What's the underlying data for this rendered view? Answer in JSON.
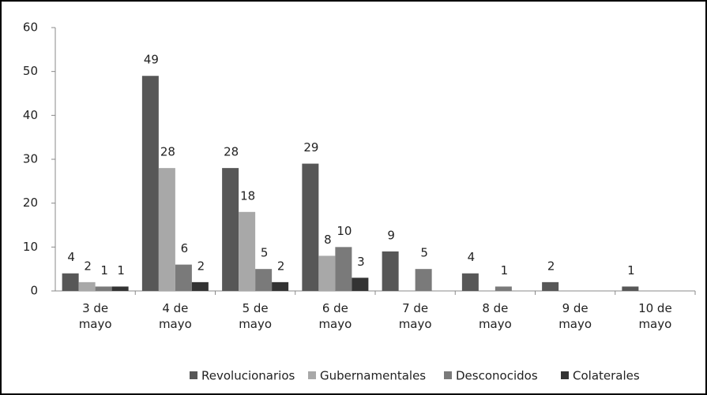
{
  "chart_data": {
    "type": "bar",
    "categories": [
      "3 de mayo",
      "4 de mayo",
      "5 de mayo",
      "6 de mayo",
      "7 de mayo",
      "8 de mayo",
      "9 de mayo",
      "10 de mayo"
    ],
    "series": [
      {
        "name": "Revolucionarios",
        "color": "#575757",
        "values": [
          4,
          49,
          28,
          29,
          9,
          4,
          2,
          1
        ]
      },
      {
        "name": "Gubernamentales",
        "color": "#a8a8a8",
        "values": [
          2,
          28,
          18,
          8,
          null,
          null,
          null,
          null
        ]
      },
      {
        "name": "Desconocidos",
        "color": "#7a7a7a",
        "values": [
          1,
          6,
          5,
          10,
          5,
          1,
          null,
          null
        ]
      },
      {
        "name": "Colaterales",
        "color": "#333333",
        "values": [
          1,
          2,
          2,
          3,
          null,
          null,
          null,
          null
        ]
      }
    ],
    "ylim": [
      0,
      60
    ],
    "yticks": [
      0,
      10,
      20,
      30,
      40,
      50,
      60
    ],
    "grid": false,
    "legend": "bottom"
  }
}
